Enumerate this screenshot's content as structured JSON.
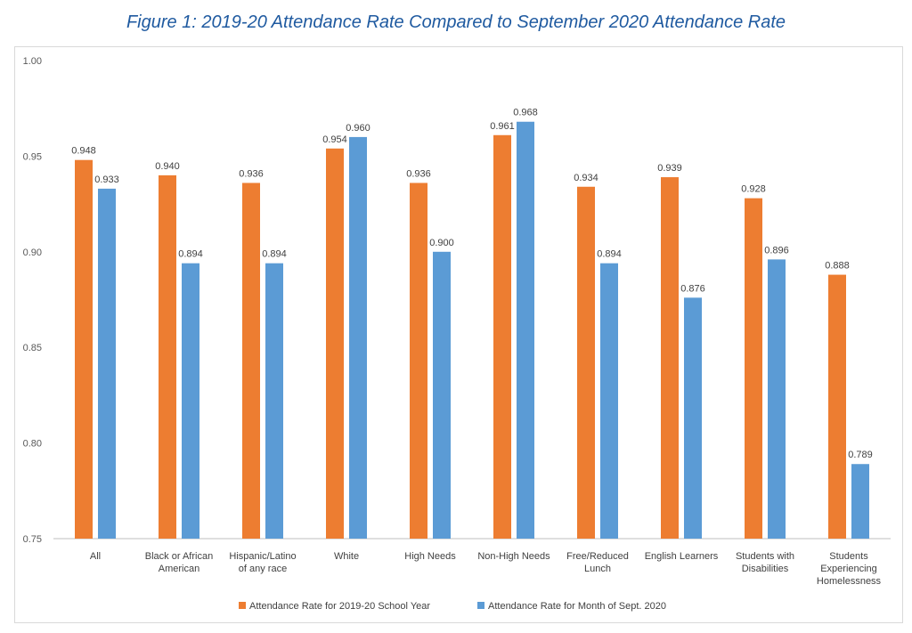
{
  "figure": {
    "title": "Figure 1: 2019-20 Attendance Rate Compared to September 2020 Attendance Rate"
  },
  "chart_data": {
    "type": "bar",
    "title": "",
    "xlabel": "",
    "ylabel": "",
    "ylim": [
      0.75,
      1.0
    ],
    "yticks": [
      "0.75",
      "0.80",
      "0.85",
      "0.90",
      "0.95",
      "1.00"
    ],
    "grid": false,
    "legend_position": "bottom",
    "categories": [
      "All",
      "Black or African American",
      "Hispanic/Latino of any race",
      "White",
      "High Needs",
      "Non-High Needs",
      "Free/Reduced Lunch",
      "English Learners",
      "Students with Disabilities",
      "Students Experiencing Homelessness"
    ],
    "series": [
      {
        "name": "Attendance Rate for 2019-20 School Year",
        "color": "#ed7d31",
        "values": [
          0.948,
          0.94,
          0.936,
          0.954,
          0.936,
          0.961,
          0.934,
          0.939,
          0.928,
          0.888
        ],
        "labels": [
          "0.948",
          "0.940",
          "0.936",
          "0.954",
          "0.936",
          "0.961",
          "0.934",
          "0.939",
          "0.928",
          "0.888"
        ]
      },
      {
        "name": "Attendance Rate for Month of Sept. 2020",
        "color": "#5b9bd5",
        "values": [
          0.933,
          0.894,
          0.894,
          0.96,
          0.9,
          0.968,
          0.894,
          0.876,
          0.896,
          0.789
        ],
        "labels": [
          "0.933",
          "0.894",
          "0.894",
          "0.960",
          "0.900",
          "0.968",
          "0.894",
          "0.876",
          "0.896",
          "0.789"
        ]
      }
    ]
  }
}
